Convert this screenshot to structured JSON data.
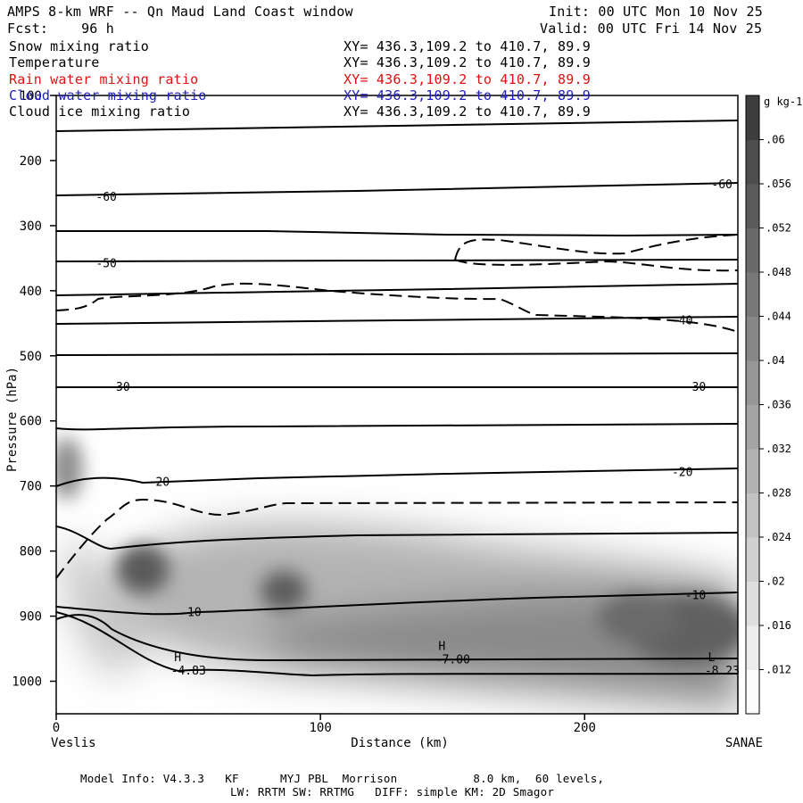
{
  "header": {
    "title": "AMPS 8-km WRF -- Qn Maud Land Coast window",
    "forecast": "Fcst:    96 h",
    "init": "Init: 00 UTC Mon 10 Nov 25",
    "valid": "Valid: 00 UTC Fri 14 Nov 25"
  },
  "fields": [
    {
      "name": "Snow mixing ratio",
      "xy": "XY= 436.3,109.2 to 410.7, 89.9",
      "color": "#000000"
    },
    {
      "name": "Temperature",
      "xy": "XY= 436.3,109.2 to 410.7, 89.9",
      "color": "#000000"
    },
    {
      "name": "Rain water mixing ratio",
      "xy": "XY= 436.3,109.2 to 410.7, 89.9",
      "color": "#e01010"
    },
    {
      "name": "Cloud water mixing ratio",
      "xy": "XY= 436.3,109.2 to 410.7, 89.9",
      "color": "#2020c0"
    },
    {
      "name": "Cloud ice mixing ratio",
      "xy": "XY= 436.3,109.2 to 410.7, 89.9",
      "color": "#000000"
    }
  ],
  "footer": {
    "line1": "Model Info: V4.3.3   KF      MYJ PBL  Morrison           8.0 km,  60 levels,",
    "line2": "LW: RRTM SW: RRTMG   DIFF: simple KM: 2D Smagor"
  },
  "chart_data": {
    "type": "heatmap",
    "title": "AMPS 8-km WRF -- Qn Maud Land Coast window",
    "xlabel": "Distance (km)",
    "ylabel": "Pressure (hPa)",
    "xlim": [
      0,
      258
    ],
    "ylim": [
      1050,
      100
    ],
    "x_ticks": [
      0,
      100,
      200
    ],
    "y_ticks": [
      100,
      200,
      300,
      400,
      500,
      600,
      700,
      800,
      900,
      1000
    ],
    "x_endpoints": {
      "left": "Veslis",
      "right": "SANAE"
    },
    "colorbar": {
      "unit": "g kg-1",
      "min": 0.008,
      "max": 0.064,
      "step": 0.004,
      "labels": [
        ".012",
        ".016",
        ".02",
        ".024",
        ".028",
        ".032",
        ".036",
        ".04",
        ".044",
        ".048",
        ".052",
        ".056",
        ".06"
      ]
    },
    "snow_blobs": [
      {
        "x": 32,
        "p": 830,
        "value": 0.05
      },
      {
        "x": 88,
        "p": 862,
        "value": 0.05
      },
      {
        "x": 240,
        "p": 925,
        "value": 0.052
      },
      {
        "x": 180,
        "p": 880,
        "value": 0.04
      },
      {
        "x": 3,
        "p": 690,
        "value": 0.036
      },
      {
        "x": 140,
        "p": 780,
        "value": 0.028
      }
    ],
    "temperature_labels": [
      {
        "text": "-60",
        "x": 15,
        "p": 255
      },
      {
        "text": "-60",
        "x": 248,
        "p": 236
      },
      {
        "text": "-50",
        "x": 15,
        "p": 357
      },
      {
        "text": "-40",
        "x": 233,
        "p": 445
      },
      {
        "text": "-30",
        "x": 20,
        "p": 547
      },
      {
        "text": "-30",
        "x": 238,
        "p": 547
      },
      {
        "text": "-20",
        "x": 35,
        "p": 693
      },
      {
        "text": "-20",
        "x": 233,
        "p": 678
      },
      {
        "text": "-10",
        "x": 47,
        "p": 893
      },
      {
        "text": "-10",
        "x": 238,
        "p": 867
      }
    ],
    "pressure_centers": [
      {
        "letter": "H",
        "value": "-4.83",
        "x": 46,
        "p": 980
      },
      {
        "letter": "H",
        "value": "-7.00",
        "x": 146,
        "p": 963
      },
      {
        "letter": "L",
        "value": "-8.23",
        "x": 248,
        "p": 980
      }
    ]
  }
}
